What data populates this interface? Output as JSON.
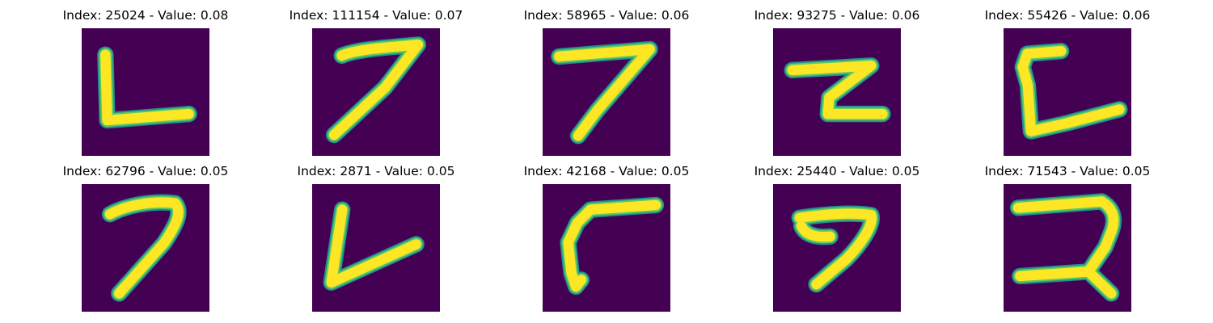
{
  "colors": {
    "background": "#440154",
    "stroke_edge": "#21918c",
    "stroke_mid": "#5ec962",
    "stroke_core": "#fde725"
  },
  "panels": [
    {
      "title": "Index: 25024 - Value: 0.08",
      "index": 25024,
      "value": 0.08,
      "glyph": "L"
    },
    {
      "title": "Index: 111154 - Value: 0.07",
      "index": 111154,
      "value": 0.07,
      "glyph": "7"
    },
    {
      "title": "Index: 58965 - Value: 0.06",
      "index": 58965,
      "value": 0.06,
      "glyph": "7"
    },
    {
      "title": "Index: 93275 - Value: 0.06",
      "index": 93275,
      "value": 0.06,
      "glyph": "z"
    },
    {
      "title": "Index: 55426 - Value: 0.06",
      "index": 55426,
      "value": 0.06,
      "glyph": "L"
    },
    {
      "title": "Index: 62796 - Value: 0.05",
      "index": 62796,
      "value": 0.05,
      "glyph": "7"
    },
    {
      "title": "Index: 2871 - Value: 0.05",
      "index": 2871,
      "value": 0.05,
      "glyph": "V"
    },
    {
      "title": "Index: 42168 - Value: 0.05",
      "index": 42168,
      "value": 0.05,
      "glyph": "Γ"
    },
    {
      "title": "Index: 25440 - Value: 0.05",
      "index": 25440,
      "value": 0.05,
      "glyph": "7"
    },
    {
      "title": "Index: 71543 - Value: 0.05",
      "index": 71543,
      "value": 0.05,
      "glyph": "2"
    }
  ]
}
